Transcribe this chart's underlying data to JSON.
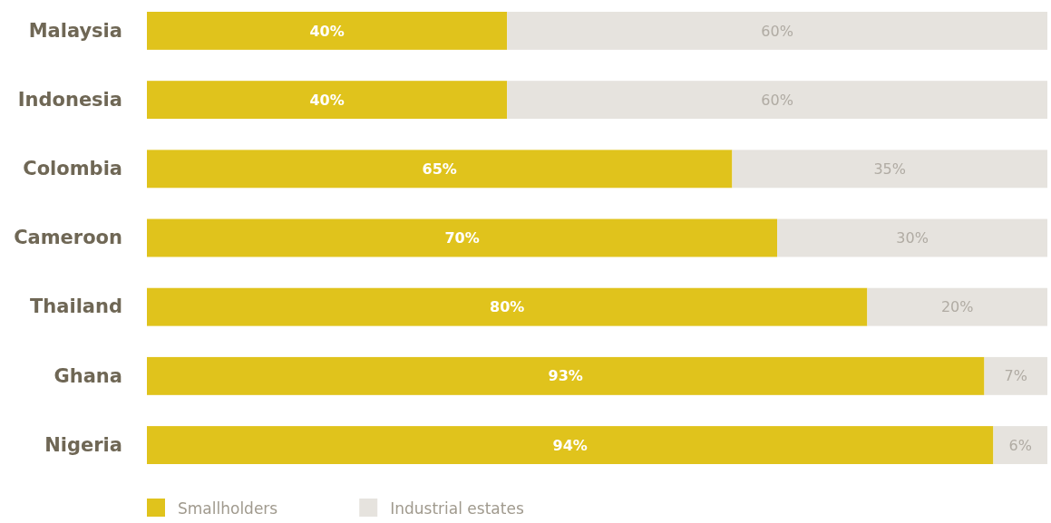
{
  "chart_data": {
    "type": "bar",
    "orientation": "horizontal",
    "stacked": true,
    "legend": "bottom left",
    "tick_labels": "y",
    "categories": [
      "Malaysia",
      "Indonesia",
      "Colombia",
      "Cameroon",
      "Thailand",
      "Ghana",
      "Nigeria"
    ],
    "series": [
      {
        "name": "Smallholders",
        "color": "#e0c31c",
        "values": [
          40,
          40,
          65,
          70,
          80,
          93,
          94
        ],
        "value_labels": [
          "40%",
          "40%",
          "65%",
          "70%",
          "80%",
          "93%",
          "94%"
        ]
      },
      {
        "name": "Industrial estates",
        "color": "#e6e3de",
        "values": [
          60,
          60,
          35,
          30,
          20,
          7,
          6
        ],
        "value_labels": [
          "60%",
          "60%",
          "35%",
          "30%",
          "20%",
          "7%",
          "6%"
        ]
      }
    ]
  }
}
